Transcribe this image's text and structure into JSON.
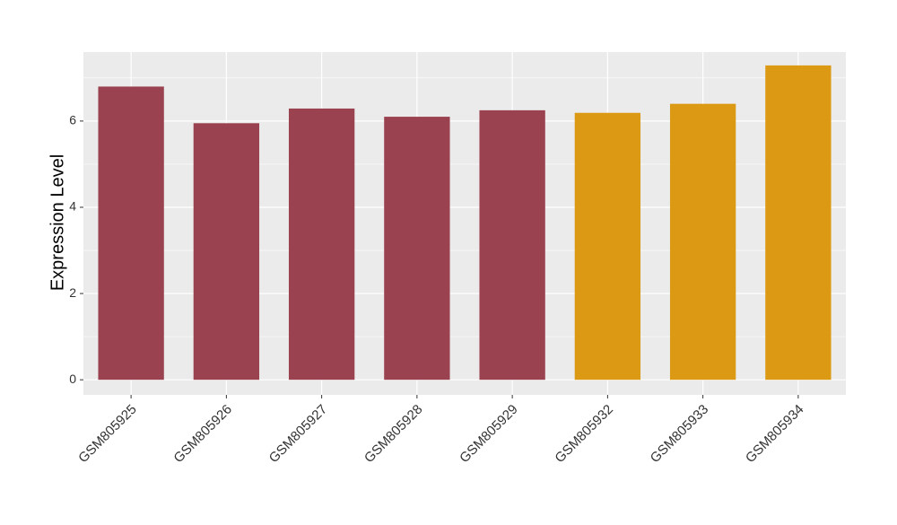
{
  "chart_data": {
    "type": "bar",
    "y_label": "Expression Level",
    "categories": [
      "GSM805925",
      "GSM805926",
      "GSM805927",
      "GSM805928",
      "GSM805929",
      "GSM805932",
      "GSM805933",
      "GSM805934"
    ],
    "values": [
      6.8,
      5.95,
      6.29,
      6.1,
      6.25,
      6.19,
      6.4,
      7.29
    ],
    "colors": [
      "#9a4250",
      "#9a4250",
      "#9a4250",
      "#9a4250",
      "#9a4250",
      "#dc9a14",
      "#dc9a14",
      "#dc9a14"
    ],
    "ylim": [
      -0.35,
      7.6
    ],
    "yticks": [
      0,
      2,
      4,
      6
    ],
    "y_minor_ticks": [
      1,
      3,
      5,
      7
    ],
    "grid": true
  }
}
